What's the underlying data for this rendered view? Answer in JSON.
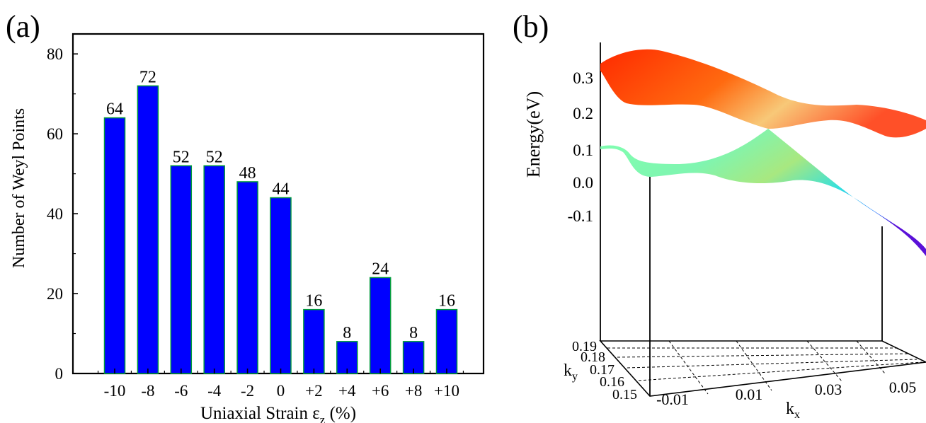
{
  "chart_data": [
    {
      "panel": "(a)",
      "type": "bar",
      "categories": [
        "-10",
        "-8",
        "-6",
        "-4",
        "-2",
        "0",
        "+2",
        "+4",
        "+6",
        "+8",
        "+10"
      ],
      "values": [
        64,
        72,
        52,
        52,
        48,
        44,
        16,
        8,
        24,
        8,
        16
      ],
      "data_labels": [
        "64",
        "72",
        "52",
        "52",
        "48",
        "44",
        "16",
        "8",
        "24",
        "8",
        "16"
      ],
      "xlabel_main": "Uniaxial Strain ε",
      "xlabel_sub": "z",
      "xlabel_unit": " (%)",
      "ylabel": "Number of Weyl Points",
      "ylim": [
        0,
        85
      ],
      "yticks": [
        0,
        20,
        40,
        60,
        80
      ],
      "bar_color": "#0000ff",
      "bar_edge_color": "#009a3a",
      "label_color": "#c00000",
      "grid": false
    },
    {
      "panel": "(b)",
      "type": "surface",
      "zlabel": "Energy(eV)",
      "xlabel": "k",
      "xlabel_sub": "x",
      "ylabel": "k",
      "ylabel_sub": "y",
      "zticks": [
        "0.3",
        "0.2",
        "0.1",
        "0.0",
        "-0.1"
      ],
      "xticks": [
        "-0.01",
        "0.01",
        "0.03",
        "0.05"
      ],
      "yticks": [
        "0.19",
        "0.18",
        "0.17",
        "0.16",
        "0.15"
      ],
      "colormap": [
        "#4a00d9",
        "#00c8ff",
        "#7fffa0",
        "#ffd060",
        "#ff3000"
      ]
    }
  ]
}
